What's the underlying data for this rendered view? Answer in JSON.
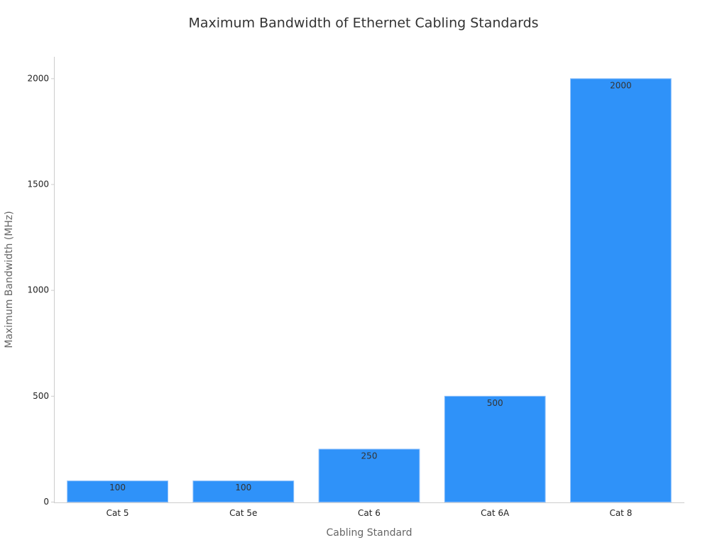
{
  "chart_data": {
    "type": "bar",
    "title": "Maximum Bandwidth of Ethernet Cabling Standards",
    "x_label": "Cabling Standard",
    "y_label": "Maximum Bandwidth (MHz)",
    "categories": [
      "Cat 5",
      "Cat 5e",
      "Cat 6",
      "Cat 6A",
      "Cat 8"
    ],
    "values": [
      100,
      100,
      250,
      500,
      2000
    ],
    "color": "#2f92f9",
    "ylim": [
      0,
      2100
    ],
    "yticks": [
      0,
      500,
      1000,
      1500,
      2000
    ],
    "grid": false
  }
}
